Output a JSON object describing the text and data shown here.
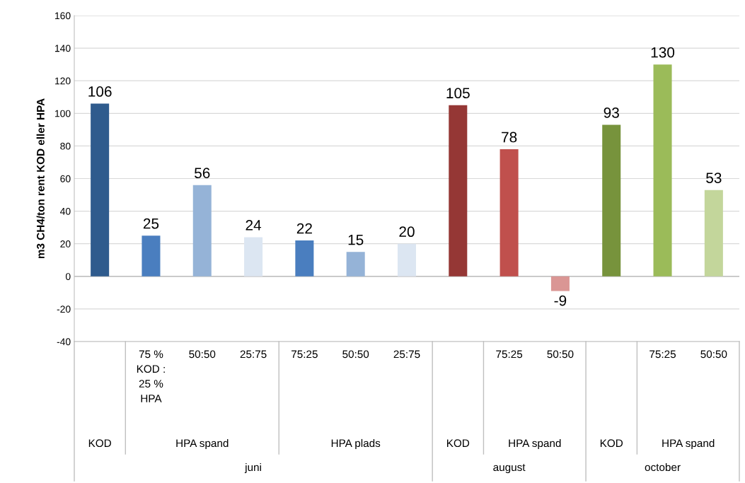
{
  "chart_data": {
    "type": "bar",
    "ylabel": "m3 CH4/ton rent KOD eller HPA",
    "categories": [
      null,
      "75 %\nKOD :\n25 %\nHPA",
      "50:50",
      "25:75",
      "75:25",
      "50:50",
      "25:75",
      null,
      "75:25",
      "50:50",
      null,
      "75:25",
      "50:50"
    ],
    "values": [
      106,
      25,
      56,
      24,
      22,
      15,
      20,
      105,
      78,
      -9,
      93,
      130,
      53
    ],
    "colors": [
      "#2f5b8d",
      "#4a7ebf",
      "#95b3d7",
      "#dce6f2",
      "#4a7ebf",
      "#95b3d7",
      "#dce6f2",
      "#953735",
      "#c0504d",
      "#da9694",
      "#77933c",
      "#9bbb59",
      "#c3d69b"
    ],
    "ylim": [
      -40,
      160
    ],
    "yticks": [
      -40,
      -20,
      0,
      20,
      40,
      60,
      80,
      100,
      120,
      140,
      160
    ],
    "grid": "y",
    "data_labels": true,
    "annotations": [
      "KOD",
      "HPA spand",
      "HPA plads",
      "KOD",
      "HPA spand",
      "KOD",
      "HPA spand",
      "juni",
      "august",
      "october"
    ]
  }
}
